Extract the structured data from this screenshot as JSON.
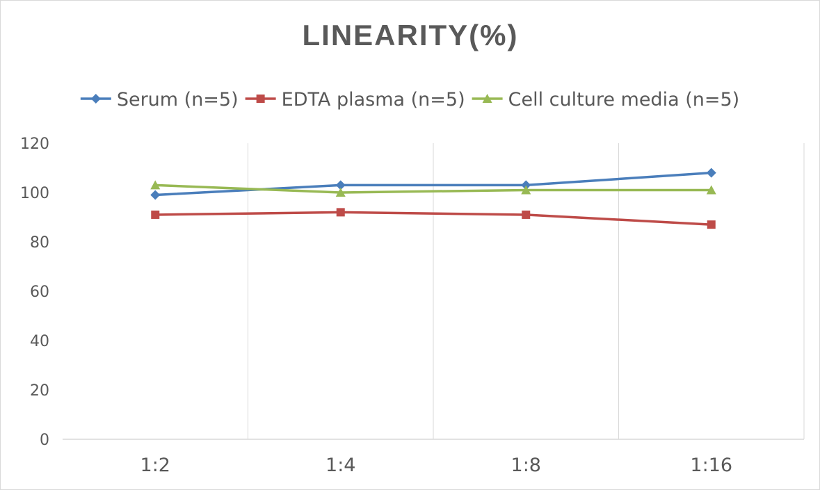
{
  "chart_data": {
    "type": "line",
    "title": "LINEARITY(%)",
    "xlabel": "",
    "ylabel": "",
    "categories": [
      "1:2",
      "1:4",
      "1:8",
      "1:16"
    ],
    "ylim": [
      0,
      120
    ],
    "yticks": [
      0,
      20,
      40,
      60,
      80,
      100,
      120
    ],
    "grid": "vertical",
    "legend_position": "top",
    "series": [
      {
        "name": "Serum (n=5)",
        "values": [
          99,
          103,
          103,
          108
        ],
        "color": "#4a7ebb",
        "marker": "diamond"
      },
      {
        "name": "EDTA plasma (n=5)",
        "values": [
          91,
          92,
          91,
          87
        ],
        "color": "#be4b48",
        "marker": "square"
      },
      {
        "name": "Cell culture media (n=5)",
        "values": [
          103,
          100,
          101,
          101
        ],
        "color": "#98b954",
        "marker": "triangle"
      }
    ]
  }
}
